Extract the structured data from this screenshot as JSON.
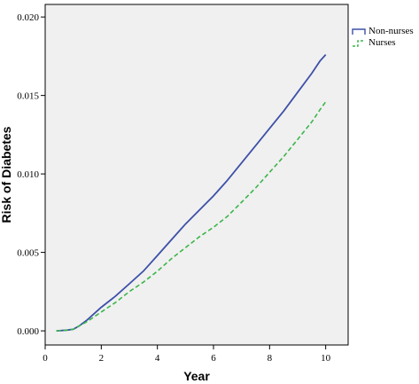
{
  "chart_data": {
    "type": "line",
    "title": "",
    "xlabel": "Year",
    "ylabel": "Risk of Diabetes",
    "xlim": [
      0,
      10.8
    ],
    "ylim": [
      -0.0009,
      0.0208
    ],
    "xticks": [
      0,
      2,
      4,
      6,
      8,
      10
    ],
    "xtick_labels": [
      "0",
      "2",
      "4",
      "6",
      "8",
      "10"
    ],
    "yticks": [
      0.0,
      0.005,
      0.01,
      0.015,
      0.02
    ],
    "ytick_labels": [
      "0.000",
      "0.005",
      "0.010",
      "0.015",
      "0.020"
    ],
    "grid": false,
    "legend_position": "top-right",
    "background": "#f0f0f0",
    "series": [
      {
        "name": "Non-nurses",
        "color": "#3d50a8",
        "style": "step-solid",
        "x": [
          0.4,
          0.8,
          1.0,
          1.2,
          1.5,
          2.0,
          2.5,
          3.0,
          3.5,
          4.0,
          4.5,
          5.0,
          5.5,
          6.0,
          6.5,
          7.0,
          7.5,
          8.0,
          8.5,
          9.0,
          9.5,
          9.8,
          10.0
        ],
        "y": [
          0.0,
          5e-05,
          0.0001,
          0.0003,
          0.0007,
          0.0015,
          0.0022,
          0.003,
          0.0038,
          0.0048,
          0.0058,
          0.0068,
          0.0077,
          0.0086,
          0.0096,
          0.0107,
          0.0118,
          0.0129,
          0.014,
          0.0152,
          0.0164,
          0.0172,
          0.0176
        ]
      },
      {
        "name": "Nurses",
        "color": "#3cb54a",
        "style": "step-dashed",
        "x": [
          0.4,
          0.8,
          1.0,
          1.2,
          1.5,
          2.0,
          2.5,
          3.0,
          3.5,
          4.0,
          4.5,
          5.0,
          5.5,
          6.0,
          6.5,
          7.0,
          7.5,
          8.0,
          8.5,
          9.0,
          9.5,
          9.8,
          10.0
        ],
        "y": [
          0.0,
          5e-05,
          0.0001,
          0.0003,
          0.0006,
          0.0012,
          0.0018,
          0.0025,
          0.0031,
          0.0038,
          0.0046,
          0.0053,
          0.006,
          0.0066,
          0.0073,
          0.0082,
          0.0091,
          0.0101,
          0.0111,
          0.0122,
          0.0133,
          0.0141,
          0.0146
        ]
      }
    ]
  }
}
